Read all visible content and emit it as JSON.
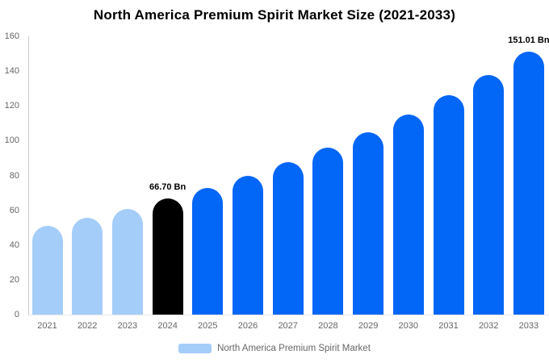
{
  "title": "North America Premium Spirit Market Size (2021-2033)",
  "colors": {
    "historical_bar": "#A5CDF9",
    "highlight_bar": "#000000",
    "forecast_bar": "#0266F6",
    "axis_line": "#CCCCCC",
    "baseline": "#E8E8E8",
    "tick_text": "#666666",
    "annotation_text": "#000000",
    "background": "#FFFFFF"
  },
  "y_axis": {
    "min": 0,
    "max": 160,
    "step": 20,
    "ticks": [
      "0",
      "20",
      "40",
      "60",
      "80",
      "100",
      "120",
      "140",
      "160"
    ]
  },
  "annotations": [
    {
      "year": "2024",
      "label": "66.70 Bn"
    },
    {
      "year": "2033",
      "label": "151.01 Bn"
    }
  ],
  "legend": {
    "label": "North America Premium Spirit Market",
    "swatch_color": "#A5CDF9"
  },
  "chart_data": {
    "type": "bar",
    "title": "North America Premium Spirit Market Size (2021-2033)",
    "xlabel": "",
    "ylabel": "",
    "unit": "Bn",
    "ylim": [
      0,
      160
    ],
    "grid": false,
    "legend_position": "bottom",
    "bar_style": "rounded-top",
    "categories": [
      "2021",
      "2022",
      "2023",
      "2024",
      "2025",
      "2026",
      "2027",
      "2028",
      "2029",
      "2030",
      "2031",
      "2032",
      "2033"
    ],
    "values": [
      50.79,
      55.62,
      60.91,
      66.7,
      73.04,
      79.98,
      87.58,
      95.9,
      105.02,
      115.0,
      125.93,
      137.9,
      151.01
    ],
    "labeled_points": {
      "2024": "66.70 Bn",
      "2033": "151.01 Bn"
    },
    "point_colors": [
      "#A5CDF9",
      "#A5CDF9",
      "#A5CDF9",
      "#000000",
      "#0266F6",
      "#0266F6",
      "#0266F6",
      "#0266F6",
      "#0266F6",
      "#0266F6",
      "#0266F6",
      "#0266F6",
      "#0266F6"
    ]
  }
}
